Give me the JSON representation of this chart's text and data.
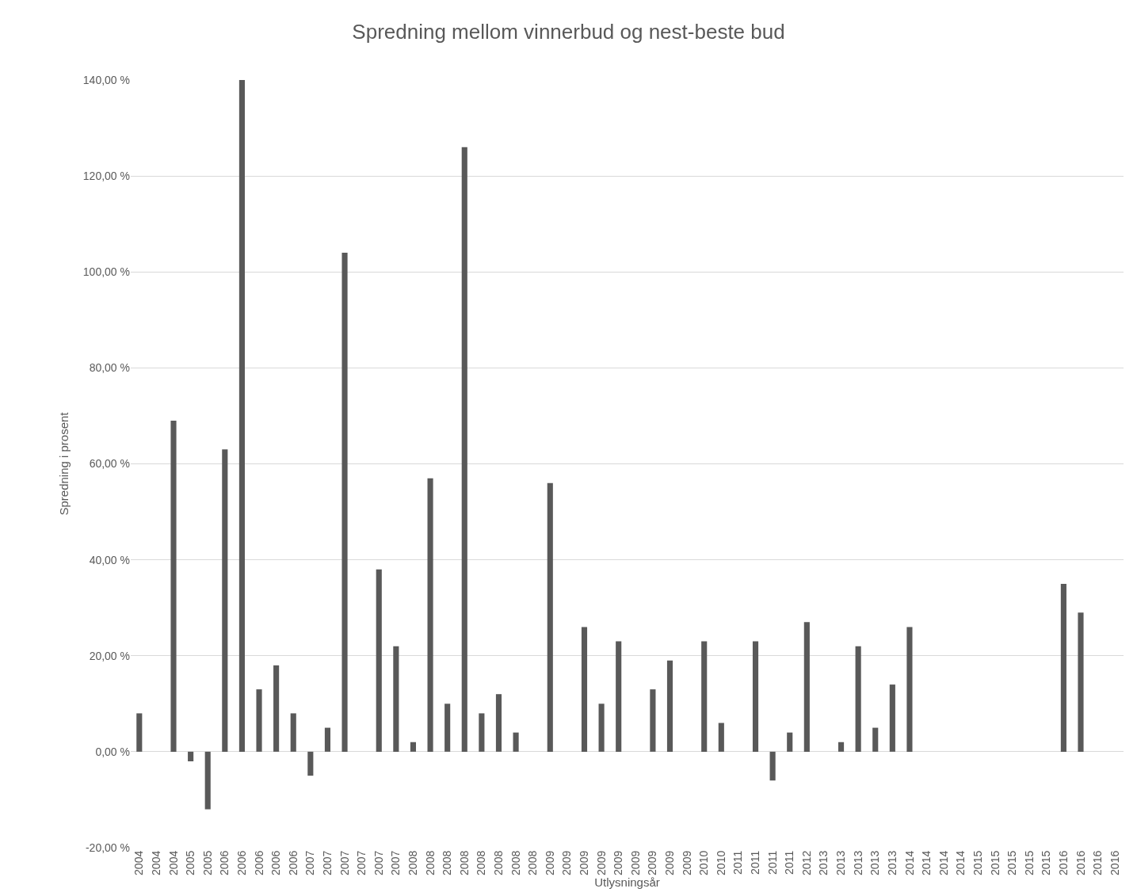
{
  "chart_data": {
    "type": "bar",
    "title": "Spredning mellom vinnerbud og nest-beste bud",
    "xlabel": "Utlysningsår",
    "ylabel": "Spredning i prosent",
    "categories": [
      "2004",
      "2004",
      "2004",
      "2005",
      "2005",
      "2006",
      "2006",
      "2006",
      "2006",
      "2006",
      "2007",
      "2007",
      "2007",
      "2007",
      "2007",
      "2007",
      "2008",
      "2008",
      "2008",
      "2008",
      "2008",
      "2008",
      "2008",
      "2008",
      "2009",
      "2009",
      "2009",
      "2009",
      "2009",
      "2009",
      "2009",
      "2009",
      "2009",
      "2010",
      "2010",
      "2011",
      "2011",
      "2011",
      "2011",
      "2012",
      "2013",
      "2013",
      "2013",
      "2013",
      "2013",
      "2014",
      "2014",
      "2014",
      "2014",
      "2015",
      "2015",
      "2015",
      "2015",
      "2015",
      "2016",
      "2016",
      "2016",
      "2016"
    ],
    "values": [
      8,
      null,
      69,
      -2,
      -12,
      63,
      140,
      13,
      18,
      8,
      -5,
      5,
      104,
      null,
      38,
      22,
      2,
      57,
      10,
      126,
      8,
      12,
      4,
      null,
      56,
      null,
      26,
      10,
      23,
      null,
      13,
      19,
      null,
      23,
      6,
      null,
      23,
      -6,
      4,
      27,
      null,
      2,
      22,
      5,
      14,
      26,
      null,
      null,
      null,
      null,
      null,
      null,
      null,
      null,
      35,
      29,
      null,
      null
    ],
    "color": "#595959",
    "ylim": [
      -20,
      140
    ],
    "yticks": [
      {
        "value": -20,
        "label": "-20,00 %"
      },
      {
        "value": 0,
        "label": "0,00 %"
      },
      {
        "value": 20,
        "label": "20,00 %"
      },
      {
        "value": 40,
        "label": "40,00 %"
      },
      {
        "value": 60,
        "label": "60,00 %"
      },
      {
        "value": 80,
        "label": "80,00 %"
      },
      {
        "value": 100,
        "label": "100,00 %"
      },
      {
        "value": 120,
        "label": "120,00 %"
      },
      {
        "value": 140,
        "label": "140,00 %"
      }
    ],
    "grid": "y"
  }
}
